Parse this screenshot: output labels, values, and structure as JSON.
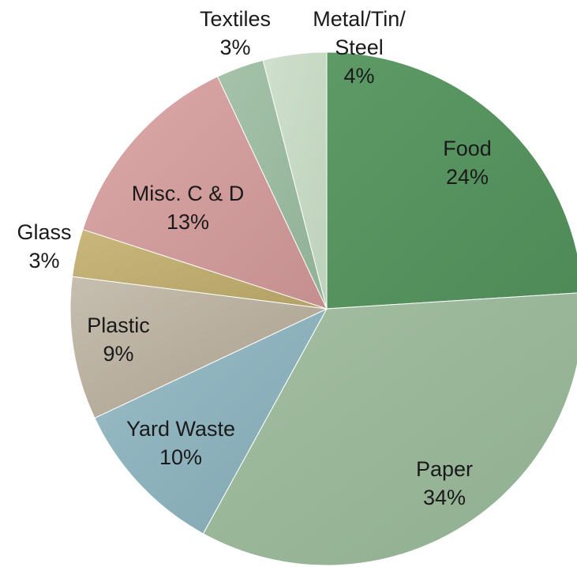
{
  "chart_data": {
    "type": "pie",
    "start": "12 o'clock",
    "direction": "clockwise",
    "slices": [
      {
        "name": "Food",
        "value": 24,
        "label": [
          "Food",
          "24%"
        ],
        "color": "#5e9a66",
        "color2": "#4e8a57"
      },
      {
        "name": "Paper",
        "value": 34,
        "label": [
          "Paper",
          "34%"
        ],
        "color": "#a4bea2",
        "color2": "#8fae8f"
      },
      {
        "name": "Yard Waste",
        "value": 10,
        "label": [
          "Yard Waste",
          "10%"
        ],
        "color": "#9bbdc8",
        "color2": "#7fa6b0"
      },
      {
        "name": "Plastic",
        "value": 9,
        "label": [
          "Plastic",
          "9%"
        ],
        "color": "#c6beae",
        "color2": "#a89e8e"
      },
      {
        "name": "Glass",
        "value": 3,
        "label": [
          "Glass",
          "3%"
        ],
        "color": "#c9b77b",
        "color2": "#b2a064"
      },
      {
        "name": "Misc. C & D",
        "value": 13,
        "label": [
          "Misc. C & D",
          "13%"
        ],
        "color": "#dca8a8",
        "color2": "#c58f8f"
      },
      {
        "name": "Textiles",
        "value": 3,
        "label": [
          "Textiles",
          "3%"
        ],
        "color": "#a6c3aa",
        "color2": "#8fb195"
      },
      {
        "name": "Metal/Tin/Steel",
        "value": 4,
        "label": [
          "Metal/Tin/",
          "Steel",
          "4%"
        ],
        "color": "#cfe0cc",
        "color2": "#bdd2ba"
      }
    ]
  }
}
